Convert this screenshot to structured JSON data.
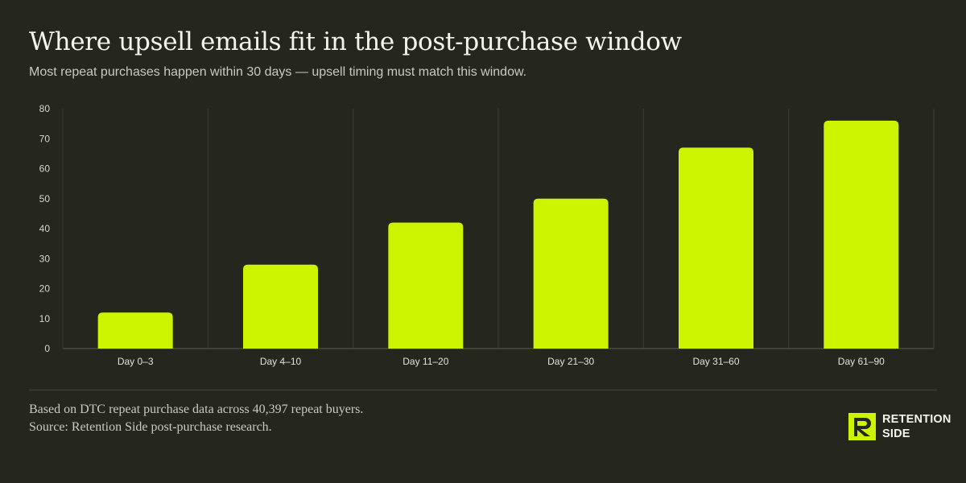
{
  "header": {
    "title": "Where upsell emails fit in the post-purchase window",
    "subtitle": "Most repeat purchases happen within 30 days — upsell timing must match this window."
  },
  "chart_data": {
    "type": "bar",
    "categories": [
      "Day 0–3",
      "Day 4–10",
      "Day 11–20",
      "Day 21–30",
      "Day 31–60",
      "Day 61–90"
    ],
    "values": [
      12,
      28,
      42,
      50,
      67,
      76
    ],
    "title": "",
    "xlabel": "",
    "ylabel": "",
    "ylim": [
      0,
      80
    ],
    "yticks": [
      0,
      10,
      20,
      30,
      40,
      50,
      60,
      70,
      80
    ],
    "grid": "vertical separators between categories",
    "legend": "none",
    "bar_color": "#ccf400"
  },
  "footer": {
    "note": "Based on DTC repeat purchase data across 40,397 repeat buyers. Source: Retention Side post-purchase research.",
    "logo_line1": "RETENTION",
    "logo_line2": "SIDE",
    "logo_icon": "retention-side-logo-icon"
  },
  "colors": {
    "background": "#25271f",
    "accent": "#ccf400",
    "text": "#f4f4ee",
    "muted_text": "#c9cabf"
  }
}
